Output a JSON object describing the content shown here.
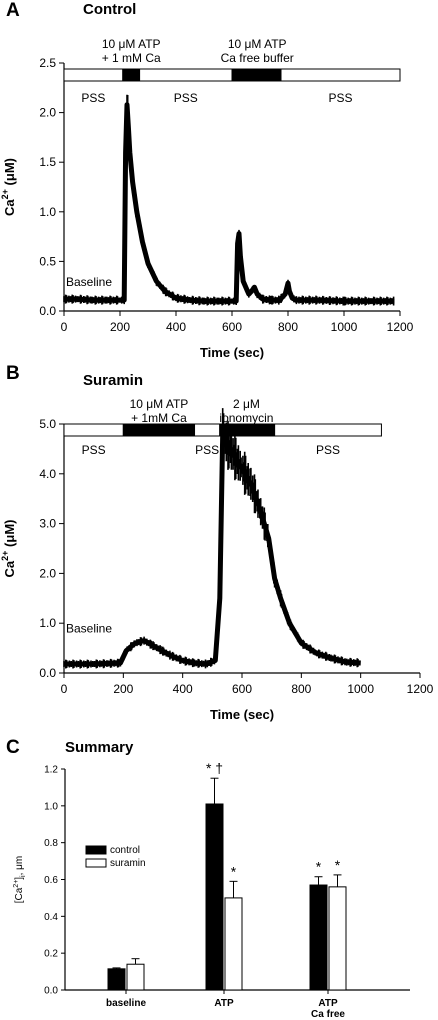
{
  "chart_data": [
    {
      "panel": "A",
      "title": "Control",
      "type": "line",
      "xlabel": "Time (sec)",
      "ylabel_main": "Ca",
      "ylabel_sup": "2+",
      "ylabel_unit": " (μM)",
      "xlim": [
        0,
        1200
      ],
      "ylim": [
        0,
        2.5
      ],
      "xticks": [
        "0",
        "200",
        "400",
        "600",
        "800",
        "1000",
        "1200"
      ],
      "yticks": [
        "0.0",
        "0.5",
        "1.0",
        "1.5",
        "2.0",
        "2.5"
      ],
      "series": [
        {
          "x": [
            0,
            50,
            100,
            150,
            200,
            215,
            220,
            225,
            230,
            235,
            245,
            260,
            280,
            300,
            330,
            360,
            400,
            450,
            500,
            550,
            600,
            615,
            620,
            625,
            630,
            640,
            660,
            670,
            680,
            690,
            710,
            740,
            770,
            790,
            800,
            805,
            815,
            830,
            900,
            1000,
            1100,
            1180
          ],
          "y": [
            0.12,
            0.12,
            0.11,
            0.11,
            0.11,
            0.11,
            1.6,
            2.08,
            1.85,
            1.6,
            1.3,
            1.0,
            0.7,
            0.48,
            0.3,
            0.2,
            0.13,
            0.11,
            0.1,
            0.1,
            0.1,
            0.1,
            0.68,
            0.78,
            0.55,
            0.3,
            0.17,
            0.2,
            0.24,
            0.17,
            0.12,
            0.11,
            0.11,
            0.17,
            0.28,
            0.2,
            0.13,
            0.11,
            0.11,
            0.1,
            0.1,
            0.1
          ]
        }
      ],
      "timeline": {
        "segments": [
          {
            "from": 0,
            "to": 210,
            "fill": "white",
            "label": "PSS"
          },
          {
            "from": 210,
            "to": 270,
            "fill": "black"
          },
          {
            "from": 270,
            "to": 600,
            "fill": "white",
            "label": "PSS"
          },
          {
            "from": 600,
            "to": 775,
            "fill": "black"
          },
          {
            "from": 775,
            "to": 1200,
            "fill": "white",
            "label": "PSS"
          }
        ],
        "labels_above": [
          {
            "lines": [
              "10 μM ATP",
              "+ 1 mM Ca"
            ],
            "at": 240
          },
          {
            "lines": [
              "10 μM ATP",
              "Ca free buffer"
            ],
            "at": 690
          }
        ]
      },
      "annotations": [
        {
          "text": "Baseline",
          "x": 10,
          "y": 0.22
        }
      ]
    },
    {
      "panel": "B",
      "title": "Suramin",
      "type": "line",
      "xlabel": "Time (sec)",
      "ylabel_main": "Ca",
      "ylabel_sup": "2+",
      "ylabel_unit": " (μM)",
      "xlim": [
        0,
        1200
      ],
      "ylim": [
        0,
        5.0
      ],
      "xticks": [
        "0",
        "200",
        "400",
        "600",
        "800",
        "1000",
        "1200"
      ],
      "yticks": [
        "0.0",
        "1.0",
        "2.0",
        "3.0",
        "4.0",
        "5.0"
      ],
      "series": [
        {
          "x": [
            0,
            100,
            190,
            210,
            240,
            270,
            300,
            330,
            360,
            400,
            440,
            480,
            510,
            525,
            535,
            550,
            570,
            600,
            630,
            660,
            690,
            710,
            730,
            760,
            800,
            850,
            900,
            950,
            1000
          ],
          "y": [
            0.18,
            0.18,
            0.2,
            0.45,
            0.6,
            0.65,
            0.55,
            0.45,
            0.35,
            0.25,
            0.2,
            0.18,
            0.25,
            1.5,
            4.8,
            4.6,
            4.4,
            4.1,
            3.8,
            3.3,
            2.7,
            1.9,
            1.5,
            1.0,
            0.6,
            0.4,
            0.3,
            0.22,
            0.2
          ]
        }
      ],
      "timeline": {
        "segments": [
          {
            "from": 0,
            "to": 200,
            "fill": "white",
            "label": "PSS"
          },
          {
            "from": 200,
            "to": 440,
            "fill": "black"
          },
          {
            "from": 440,
            "to": 525,
            "fill": "white",
            "label": "PSS"
          },
          {
            "from": 525,
            "to": 710,
            "fill": "black"
          },
          {
            "from": 710,
            "to": 1070,
            "fill": "white",
            "label": "PSS"
          }
        ],
        "labels_above": [
          {
            "lines": [
              "10 μM ATP",
              "+ 1mM Ca"
            ],
            "at": 320
          },
          {
            "lines": [
              "2 μM",
              "ionomycin"
            ],
            "at": 615
          }
        ]
      },
      "annotations": [
        {
          "text": "Baseline",
          "x": 10,
          "y": 0.75
        }
      ]
    },
    {
      "panel": "C",
      "title": "Summary",
      "type": "bar",
      "ylabel_main": "[Ca",
      "ylabel_sup": "2+",
      "ylabel_unit": "]",
      "ylabel_sub": "i",
      "ylabel_tail": ", μm",
      "ylim": [
        0,
        1.2
      ],
      "yticks": [
        "0.0",
        "0.2",
        "0.4",
        "0.6",
        "0.8",
        "1.0",
        "1.2"
      ],
      "categories": [
        [
          "baseline"
        ],
        [
          "ATP"
        ],
        [
          "ATP",
          "Ca free"
        ]
      ],
      "series": [
        {
          "name": "control",
          "color": "#000000",
          "values": [
            0.115,
            1.01,
            0.57
          ],
          "errors": [
            0.005,
            0.14,
            0.045
          ],
          "markers": [
            "",
            "* †",
            "*"
          ]
        },
        {
          "name": "suramin",
          "color": "#ffffff",
          "values": [
            0.14,
            0.5,
            0.56
          ],
          "errors": [
            0.03,
            0.09,
            0.065
          ],
          "markers": [
            "",
            "*",
            "*"
          ]
        }
      ],
      "legend_position": "left"
    }
  ]
}
